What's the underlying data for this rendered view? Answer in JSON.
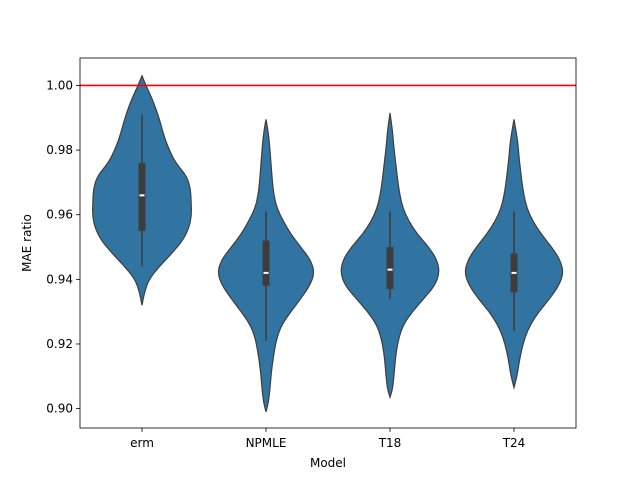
{
  "chart_data": {
    "type": "violin",
    "title": "",
    "xlabel": "Model",
    "ylabel": "MAE ratio",
    "categories": [
      "erm",
      "NPMLE",
      "T18",
      "T24"
    ],
    "ylim": [
      0.894,
      1.0085
    ],
    "yticks": [
      0.9,
      0.92,
      0.94,
      0.96,
      0.98,
      1.0
    ],
    "ytick_labels": [
      "0.90",
      "0.92",
      "0.94",
      "0.96",
      "0.98",
      "1.00"
    ],
    "grid": false,
    "legend": "none",
    "reference_line": {
      "y": 1.0,
      "color": "#ff0000"
    },
    "violin_color": "#3274a1",
    "box_color": "#3d3d3d",
    "series": [
      {
        "category": "erm",
        "min": 0.932,
        "max": 1.003,
        "whisker_low": 0.944,
        "whisker_high": 0.991,
        "q1": 0.955,
        "median": 0.966,
        "q3": 0.976,
        "density": [
          [
            0.932,
            0.0
          ],
          [
            0.936,
            0.05
          ],
          [
            0.94,
            0.14
          ],
          [
            0.944,
            0.35
          ],
          [
            0.948,
            0.6
          ],
          [
            0.952,
            0.82
          ],
          [
            0.956,
            0.95
          ],
          [
            0.96,
            1.0
          ],
          [
            0.964,
            0.99
          ],
          [
            0.968,
            0.98
          ],
          [
            0.972,
            0.9
          ],
          [
            0.976,
            0.68
          ],
          [
            0.98,
            0.55
          ],
          [
            0.984,
            0.45
          ],
          [
            0.988,
            0.38
          ],
          [
            0.992,
            0.3
          ],
          [
            0.996,
            0.2
          ],
          [
            1.0,
            0.08
          ],
          [
            1.003,
            0.0
          ]
        ]
      },
      {
        "category": "NPMLE",
        "min": 0.899,
        "max": 0.9895,
        "whisker_low": 0.921,
        "whisker_high": 0.961,
        "q1": 0.938,
        "median": 0.942,
        "q3": 0.952,
        "density": [
          [
            0.899,
            0.0
          ],
          [
            0.902,
            0.05
          ],
          [
            0.906,
            0.08
          ],
          [
            0.91,
            0.1
          ],
          [
            0.914,
            0.13
          ],
          [
            0.918,
            0.17
          ],
          [
            0.922,
            0.22
          ],
          [
            0.926,
            0.32
          ],
          [
            0.93,
            0.5
          ],
          [
            0.934,
            0.7
          ],
          [
            0.938,
            0.88
          ],
          [
            0.942,
            0.98
          ],
          [
            0.946,
            0.9
          ],
          [
            0.95,
            0.7
          ],
          [
            0.954,
            0.5
          ],
          [
            0.958,
            0.35
          ],
          [
            0.962,
            0.22
          ],
          [
            0.966,
            0.16
          ],
          [
            0.97,
            0.13
          ],
          [
            0.974,
            0.11
          ],
          [
            0.978,
            0.09
          ],
          [
            0.982,
            0.07
          ],
          [
            0.986,
            0.04
          ],
          [
            0.9895,
            0.0
          ]
        ]
      },
      {
        "category": "T18",
        "min": 0.9035,
        "max": 0.9915,
        "whisker_low": 0.934,
        "whisker_high": 0.961,
        "q1": 0.937,
        "median": 0.943,
        "q3": 0.95,
        "density": [
          [
            0.9035,
            0.0
          ],
          [
            0.906,
            0.05
          ],
          [
            0.91,
            0.08
          ],
          [
            0.914,
            0.1
          ],
          [
            0.918,
            0.13
          ],
          [
            0.922,
            0.18
          ],
          [
            0.926,
            0.27
          ],
          [
            0.93,
            0.45
          ],
          [
            0.934,
            0.68
          ],
          [
            0.938,
            0.9
          ],
          [
            0.942,
            1.0
          ],
          [
            0.946,
            0.95
          ],
          [
            0.95,
            0.78
          ],
          [
            0.954,
            0.55
          ],
          [
            0.958,
            0.38
          ],
          [
            0.962,
            0.26
          ],
          [
            0.966,
            0.2
          ],
          [
            0.97,
            0.16
          ],
          [
            0.974,
            0.13
          ],
          [
            0.978,
            0.1
          ],
          [
            0.982,
            0.07
          ],
          [
            0.986,
            0.05
          ],
          [
            0.9915,
            0.0
          ]
        ]
      },
      {
        "category": "T24",
        "min": 0.9065,
        "max": 0.9895,
        "whisker_low": 0.924,
        "whisker_high": 0.961,
        "q1": 0.936,
        "median": 0.942,
        "q3": 0.948,
        "density": [
          [
            0.9065,
            0.0
          ],
          [
            0.91,
            0.06
          ],
          [
            0.914,
            0.1
          ],
          [
            0.918,
            0.15
          ],
          [
            0.922,
            0.22
          ],
          [
            0.926,
            0.33
          ],
          [
            0.93,
            0.5
          ],
          [
            0.934,
            0.72
          ],
          [
            0.938,
            0.9
          ],
          [
            0.942,
            1.0
          ],
          [
            0.946,
            0.93
          ],
          [
            0.95,
            0.76
          ],
          [
            0.954,
            0.55
          ],
          [
            0.958,
            0.38
          ],
          [
            0.962,
            0.26
          ],
          [
            0.966,
            0.2
          ],
          [
            0.97,
            0.16
          ],
          [
            0.974,
            0.13
          ],
          [
            0.978,
            0.1
          ],
          [
            0.982,
            0.08
          ],
          [
            0.986,
            0.04
          ],
          [
            0.9895,
            0.0
          ]
        ]
      }
    ]
  }
}
